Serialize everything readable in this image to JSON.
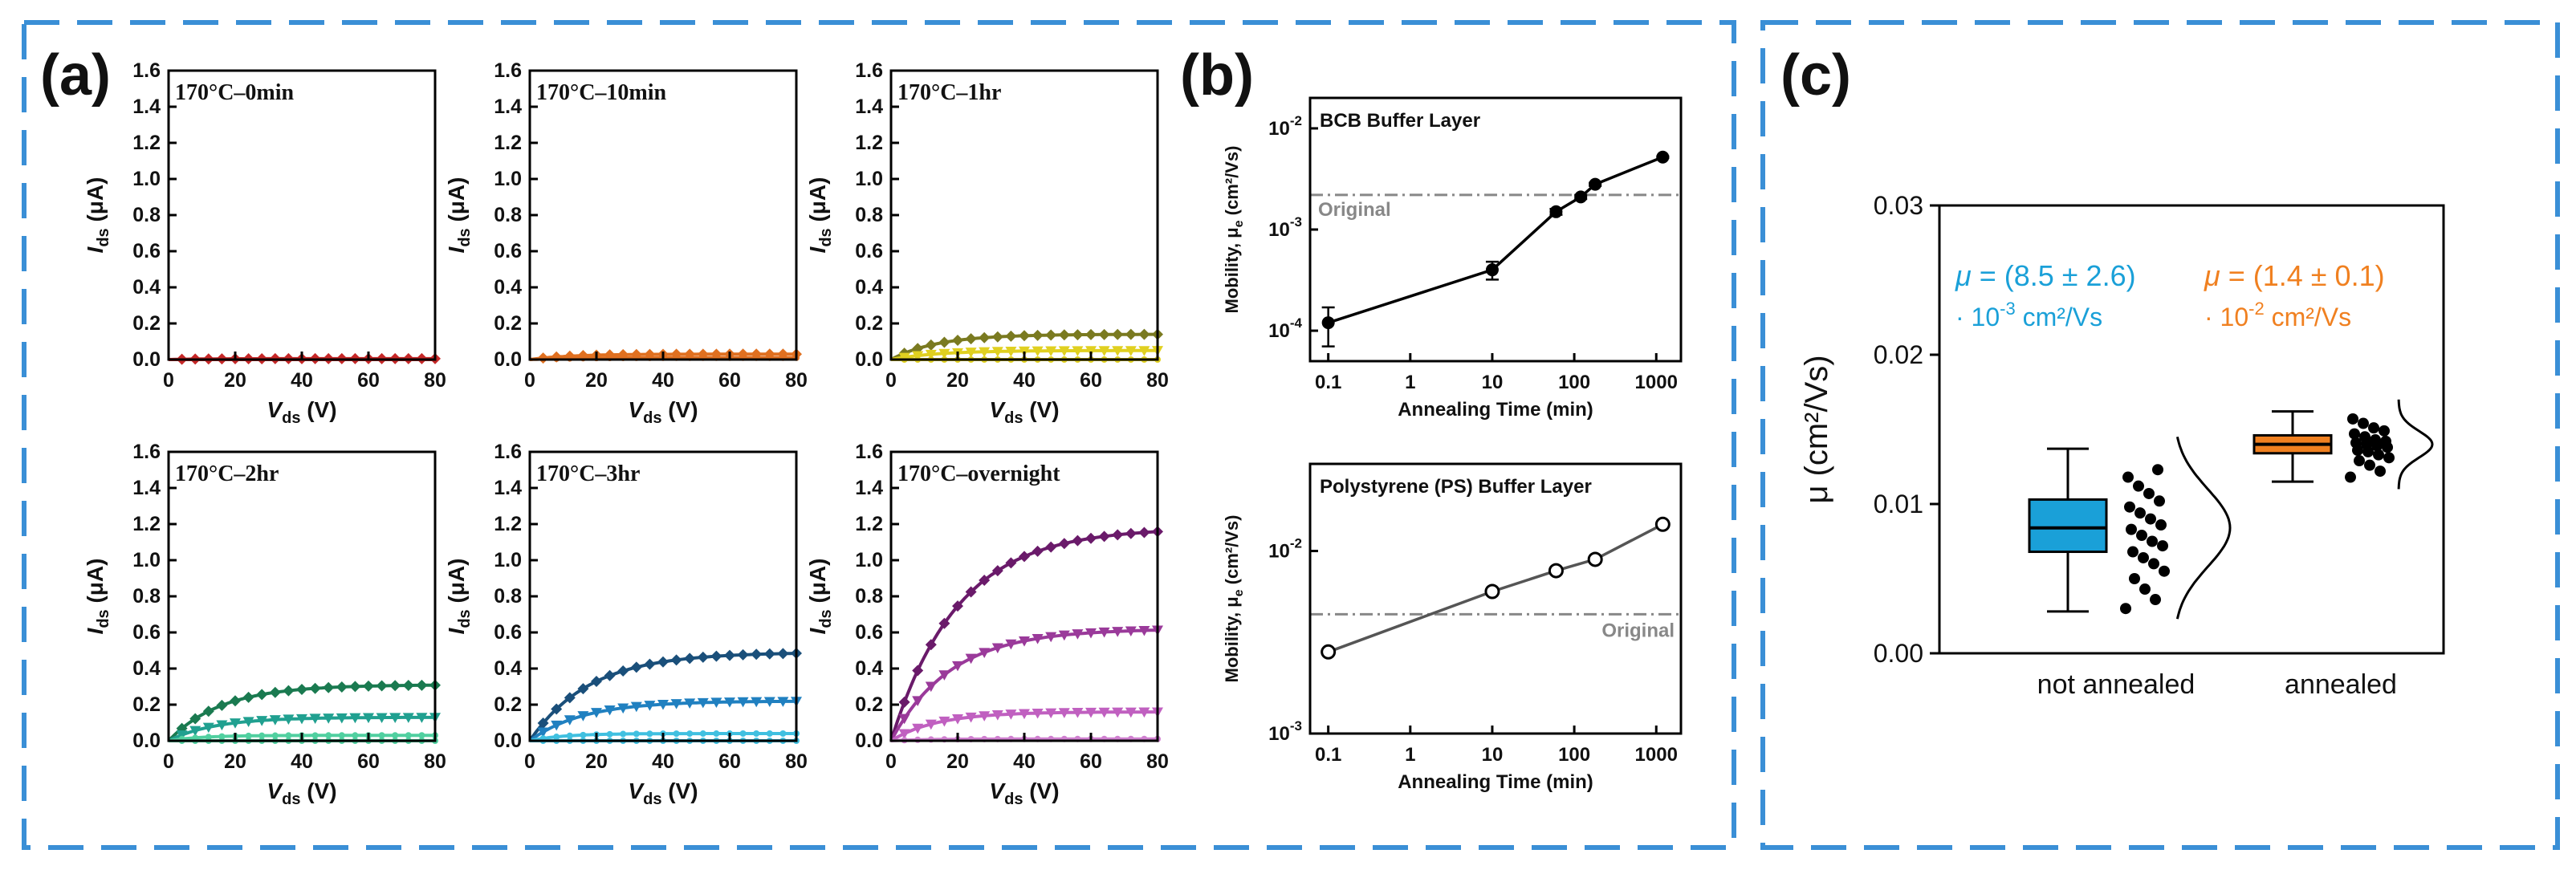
{
  "panels": {
    "a": "(a)",
    "b": "(b)",
    "c": "(c)"
  },
  "colors": {
    "frame": "#3a8fd6",
    "red": "#c62828",
    "orange": "#e07020",
    "olive": "#7a7a20",
    "yellow": "#e0d020",
    "darkgreen": "#1a7a50",
    "teal": "#20a090",
    "mint": "#50d0a0",
    "navy": "#1a4f7a",
    "blue": "#2080c0",
    "cyan": "#40c0e0",
    "purple": "#6a1a6a",
    "violet": "#9a3a9a",
    "magenta": "#c060c0",
    "pink": "#d080d0",
    "boxBlue": "#1aa0d8",
    "boxOrange": "#f08020",
    "gray": "#888888"
  },
  "chart_data": [
    {
      "id": "a1",
      "type": "line",
      "title": "170°C–0min",
      "xlabel": "V",
      "xlabel_sub": "ds",
      "xlabel_unit": " (V)",
      "ylabel": "I",
      "ylabel_sub": "ds",
      "ylabel_unit": " (μA)",
      "xlim": [
        0,
        80
      ],
      "ylim": [
        0,
        1.6
      ],
      "xticks": [
        "0",
        "20",
        "40",
        "60",
        "80"
      ],
      "yticks": [
        "0.0",
        "0.2",
        "0.4",
        "0.6",
        "0.8",
        "1.0",
        "1.2",
        "1.4",
        "1.6"
      ],
      "series": [
        {
          "color": "red",
          "marker": "diamond",
          "sat": 0.005,
          "k": 10
        },
        {
          "color": "red",
          "marker": "none",
          "sat": 0.0,
          "k": 10
        }
      ]
    },
    {
      "id": "a2",
      "type": "line",
      "title": "170°C–10min",
      "xlabel": "V",
      "xlabel_sub": "ds",
      "xlabel_unit": " (V)",
      "ylabel": "I",
      "ylabel_sub": "ds",
      "ylabel_unit": " (μA)",
      "xlim": [
        0,
        80
      ],
      "ylim": [
        0,
        1.6
      ],
      "xticks": [
        "0",
        "20",
        "40",
        "60",
        "80"
      ],
      "yticks": [
        "0.0",
        "0.2",
        "0.4",
        "0.6",
        "0.8",
        "1.0",
        "1.2",
        "1.4",
        "1.6"
      ],
      "series": [
        {
          "color": "orange",
          "marker": "diamond",
          "sat": 0.03,
          "k": 12
        },
        {
          "color": "orange",
          "marker": "none",
          "sat": 0.01,
          "k": 12
        }
      ]
    },
    {
      "id": "a3",
      "type": "line",
      "title": "170°C–1hr",
      "xlabel": "V",
      "xlabel_sub": "ds",
      "xlabel_unit": " (V)",
      "ylabel": "I",
      "ylabel_sub": "ds",
      "ylabel_unit": " (μA)",
      "xlim": [
        0,
        80
      ],
      "ylim": [
        0,
        1.6
      ],
      "xticks": [
        "0",
        "20",
        "40",
        "60",
        "80"
      ],
      "yticks": [
        "0.0",
        "0.2",
        "0.4",
        "0.6",
        "0.8",
        "1.0",
        "1.2",
        "1.4",
        "1.6"
      ],
      "series": [
        {
          "color": "olive",
          "marker": "diamond",
          "sat": 0.14,
          "k": 14
        },
        {
          "color": "yellow",
          "marker": "triangle",
          "sat": 0.05,
          "k": 14
        },
        {
          "color": "yellow",
          "marker": "none",
          "sat": 0.0,
          "k": 14
        }
      ]
    },
    {
      "id": "a4",
      "type": "line",
      "title": "170°C–2hr",
      "xlabel": "V",
      "xlabel_sub": "ds",
      "xlabel_unit": " (V)",
      "ylabel": "I",
      "ylabel_sub": "ds",
      "ylabel_unit": " (μA)",
      "xlim": [
        0,
        80
      ],
      "ylim": [
        0,
        1.6
      ],
      "xticks": [
        "0",
        "20",
        "40",
        "60",
        "80"
      ],
      "yticks": [
        "0.0",
        "0.2",
        "0.4",
        "0.6",
        "0.8",
        "1.0",
        "1.2",
        "1.4",
        "1.6"
      ],
      "series": [
        {
          "color": "darkgreen",
          "marker": "diamond",
          "sat": 0.31,
          "k": 16
        },
        {
          "color": "teal",
          "marker": "triangle",
          "sat": 0.13,
          "k": 14
        },
        {
          "color": "mint",
          "marker": "none",
          "sat": 0.03,
          "k": 10
        },
        {
          "color": "mint",
          "marker": "none",
          "sat": 0.0,
          "k": 10
        }
      ]
    },
    {
      "id": "a5",
      "type": "line",
      "title": "170°C–3hr",
      "xlabel": "V",
      "xlabel_sub": "ds",
      "xlabel_unit": " (V)",
      "ylabel": "I",
      "ylabel_sub": "ds",
      "ylabel_unit": " (μA)",
      "xlim": [
        0,
        80
      ],
      "ylim": [
        0,
        1.6
      ],
      "xticks": [
        "0",
        "20",
        "40",
        "60",
        "80"
      ],
      "yticks": [
        "0.0",
        "0.2",
        "0.4",
        "0.6",
        "0.8",
        "1.0",
        "1.2",
        "1.4",
        "1.6"
      ],
      "series": [
        {
          "color": "navy",
          "marker": "diamond",
          "sat": 0.49,
          "k": 18
        },
        {
          "color": "blue",
          "marker": "triangle",
          "sat": 0.22,
          "k": 16
        },
        {
          "color": "cyan",
          "marker": "none",
          "sat": 0.04,
          "k": 10
        },
        {
          "color": "cyan",
          "marker": "none",
          "sat": 0.0,
          "k": 10
        }
      ]
    },
    {
      "id": "a6",
      "type": "line",
      "title": "170°C–overnight",
      "xlabel": "V",
      "xlabel_sub": "ds",
      "xlabel_unit": " (V)",
      "ylabel": "I",
      "ylabel_sub": "ds",
      "ylabel_unit": " (μA)",
      "xlim": [
        0,
        80
      ],
      "ylim": [
        0,
        1.6
      ],
      "xticks": [
        "0",
        "20",
        "40",
        "60",
        "80"
      ],
      "yticks": [
        "0.0",
        "0.2",
        "0.4",
        "0.6",
        "0.8",
        "1.0",
        "1.2",
        "1.4",
        "1.6"
      ],
      "series": [
        {
          "color": "purple",
          "marker": "diamond",
          "sat": 1.18,
          "k": 20
        },
        {
          "color": "violet",
          "marker": "triangle",
          "sat": 0.62,
          "k": 18
        },
        {
          "color": "magenta",
          "marker": "triangle",
          "sat": 0.16,
          "k": 14
        },
        {
          "color": "pink",
          "marker": "none",
          "sat": 0.01,
          "k": 10
        }
      ]
    },
    {
      "id": "b1",
      "type": "line",
      "title": "BCB Buffer Layer",
      "xlabel": "Annealing Time (min)",
      "ylabel": "Mobility, μ",
      "ylabel_sub": "e",
      "ylabel_unit": " (cm²/Vs)",
      "xscale": "log",
      "yscale": "log",
      "xlim": [
        0.06,
        2000
      ],
      "ylim": [
        5e-05,
        0.02
      ],
      "xticks": [
        {
          "v": 0.1,
          "label": "0.1"
        },
        {
          "v": 1,
          "label": "1"
        },
        {
          "v": 10,
          "label": "10"
        },
        {
          "v": 100,
          "label": "100"
        },
        {
          "v": 1000,
          "label": "1000"
        }
      ],
      "yticks": [
        {
          "v": 0.0001,
          "base": "10",
          "exp": "-4"
        },
        {
          "v": 0.001,
          "base": "10",
          "exp": "-3"
        },
        {
          "v": 0.01,
          "base": "10",
          "exp": "-2"
        }
      ],
      "reference": {
        "value": 0.0022,
        "label": "Original"
      },
      "x": [
        0.1,
        10,
        60,
        120,
        180,
        1200
      ],
      "y": [
        0.00012,
        0.0004,
        0.0015,
        0.0021,
        0.0028,
        0.0052
      ],
      "err": [
        5e-05,
        8e-05,
        0.0001,
        0.0001,
        0.0001,
        0.0001
      ],
      "marker": "filled"
    },
    {
      "id": "b2",
      "type": "line",
      "title": "Polystyrene (PS) Buffer Layer",
      "xlabel": "Annealing Time (min)",
      "ylabel": "Mobility, μ",
      "ylabel_sub": "e",
      "ylabel_unit": " (cm²/Vs)",
      "xscale": "log",
      "yscale": "log",
      "xlim": [
        0.06,
        2000
      ],
      "ylim": [
        0.001,
        0.03
      ],
      "xticks": [
        {
          "v": 0.1,
          "label": "0.1"
        },
        {
          "v": 1,
          "label": "1"
        },
        {
          "v": 10,
          "label": "10"
        },
        {
          "v": 100,
          "label": "100"
        },
        {
          "v": 1000,
          "label": "1000"
        }
      ],
      "yticks": [
        {
          "v": 0.001,
          "base": "10",
          "exp": "-3"
        },
        {
          "v": 0.01,
          "base": "10",
          "exp": "-2"
        }
      ],
      "reference": {
        "value": 0.0045,
        "label": "Original"
      },
      "x": [
        0.1,
        10,
        60,
        180,
        1200
      ],
      "y": [
        0.0028,
        0.006,
        0.0078,
        0.009,
        0.014
      ],
      "marker": "open"
    },
    {
      "id": "c1",
      "type": "box",
      "ylabel": "μ (cm²/Vs)",
      "ylim": [
        0,
        0.03
      ],
      "yticks": [
        "0.00",
        "0.01",
        "0.02",
        "0.03"
      ],
      "categories": [
        "not annealed",
        "annealed"
      ],
      "boxes": [
        {
          "name": "not annealed",
          "color": "boxBlue",
          "whislo": 0.0028,
          "q1": 0.0068,
          "med": 0.0084,
          "q3": 0.0103,
          "whishi": 0.0137,
          "points": [
            0.003,
            0.0036,
            0.0043,
            0.005,
            0.0055,
            0.006,
            0.0064,
            0.0068,
            0.0072,
            0.0075,
            0.0079,
            0.0083,
            0.0086,
            0.009,
            0.0094,
            0.0098,
            0.0102,
            0.0107,
            0.0112,
            0.0118,
            0.0123
          ],
          "annotation": {
            "mu": "μ",
            "value": " = (8.5 ± 2.6)",
            "unit_prefix": "· 10",
            "unit_exp": "-3",
            "unit_suffix": " cm²/Vs"
          }
        },
        {
          "name": "annealed",
          "color": "boxOrange",
          "whislo": 0.0115,
          "q1": 0.0134,
          "med": 0.014,
          "q3": 0.0146,
          "whishi": 0.0162,
          "points": [
            0.0118,
            0.0122,
            0.0126,
            0.0129,
            0.0131,
            0.0133,
            0.0135,
            0.0136,
            0.0138,
            0.0139,
            0.014,
            0.0141,
            0.0142,
            0.0143,
            0.0145,
            0.0147,
            0.0149,
            0.0151,
            0.0154,
            0.0157
          ],
          "annotation": {
            "mu": "μ",
            "value": " = (1.4 ± 0.1)",
            "unit_prefix": "· 10",
            "unit_exp": "-2",
            "unit_suffix": " cm²/Vs"
          }
        }
      ]
    }
  ]
}
